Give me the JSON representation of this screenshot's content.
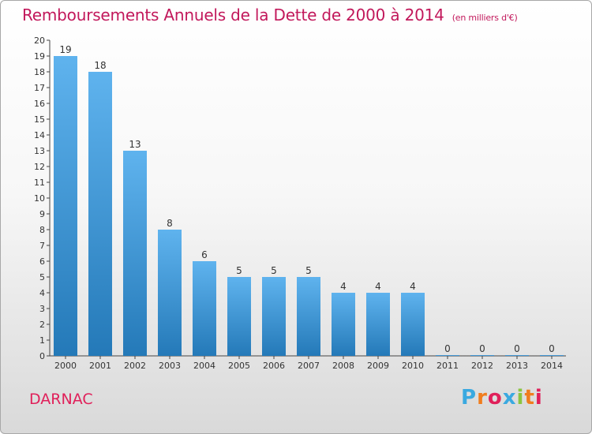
{
  "header": {
    "title": "Remboursements Annuels de la Dette de 2000 à 2014",
    "subtitle": "(en milliers d'€)"
  },
  "footer": {
    "commune": "DARNAC",
    "logo_letters": [
      "P",
      "r",
      "o",
      "x",
      "i",
      "t",
      "i"
    ],
    "logo_colors": [
      "#3aa9e0",
      "#f07d1e",
      "#e0205a",
      "#3aa9e0",
      "#8bc540",
      "#f07d1e",
      "#e0205a"
    ]
  },
  "colors": {
    "bar_light": "#5fb3ee",
    "bar_dark": "#2479b8",
    "axis": "#444444",
    "title": "#c2185b"
  },
  "chart_data": {
    "type": "bar",
    "title": "Remboursements Annuels de la Dette de 2000 à 2014",
    "ylabel": "(en milliers d'€)",
    "xlabel": "",
    "categories": [
      "2000",
      "2001",
      "2002",
      "2003",
      "2004",
      "2005",
      "2006",
      "2007",
      "2008",
      "2009",
      "2010",
      "2011",
      "2012",
      "2013",
      "2014"
    ],
    "values": [
      19,
      18,
      13,
      8,
      6,
      5,
      5,
      5,
      4,
      4,
      4,
      0,
      0,
      0,
      0
    ],
    "ylim": [
      0,
      20
    ],
    "yticks": [
      "0",
      "1",
      "2",
      "3",
      "4",
      "5",
      "6",
      "7",
      "8",
      "9",
      "10",
      "11",
      "12",
      "13",
      "14",
      "15",
      "16",
      "17",
      "18",
      "19",
      "20"
    ],
    "grid": false
  }
}
